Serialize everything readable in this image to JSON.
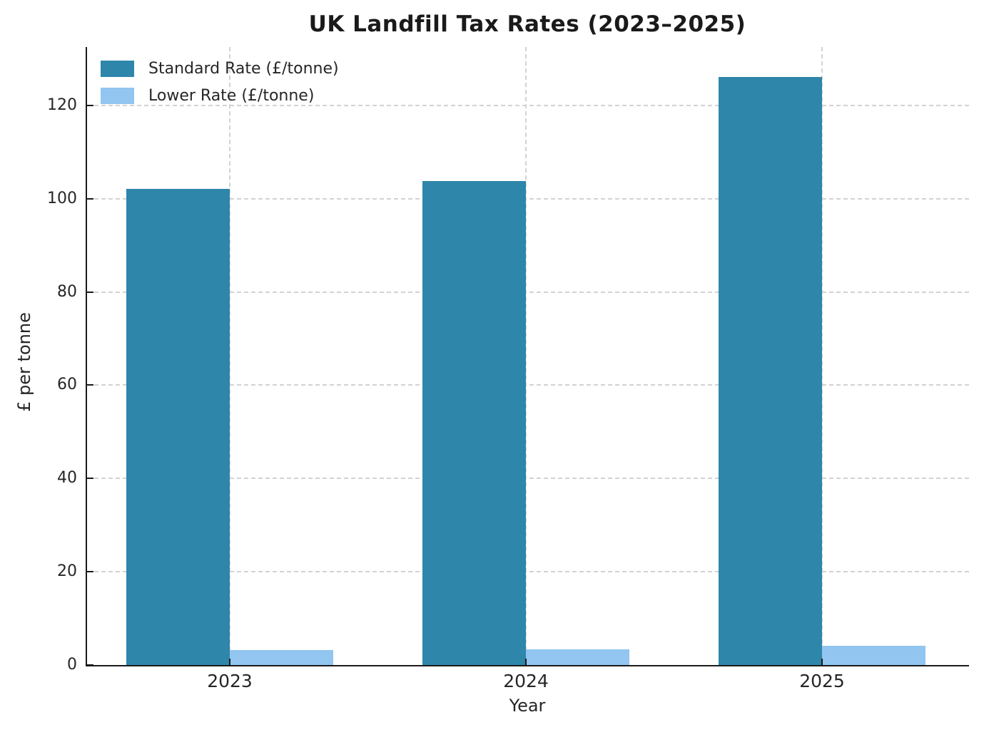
{
  "chart_data": {
    "type": "bar",
    "title": "UK Landfill Tax Rates (2023–2025)",
    "categories": [
      "2023",
      "2024",
      "2025"
    ],
    "series": [
      {
        "name": "Standard Rate (£/tonne)",
        "color": "#2E86AB",
        "values": [
          102.1,
          103.7,
          126.15
        ]
      },
      {
        "name": "Lower Rate (£/tonne)",
        "color": "#92C5F0",
        "values": [
          3.25,
          3.3,
          4.05
        ]
      }
    ],
    "xlabel": "Year",
    "ylabel": "£ per tonne",
    "yticks": [
      0,
      20,
      40,
      60,
      80,
      100,
      120
    ],
    "ylim": [
      0,
      132.5
    ],
    "grid": "dashed, both axes, behind bars",
    "legend_position": "upper left",
    "axis_color": "#1a1a1a",
    "grid_color": "#d2d2d2"
  }
}
